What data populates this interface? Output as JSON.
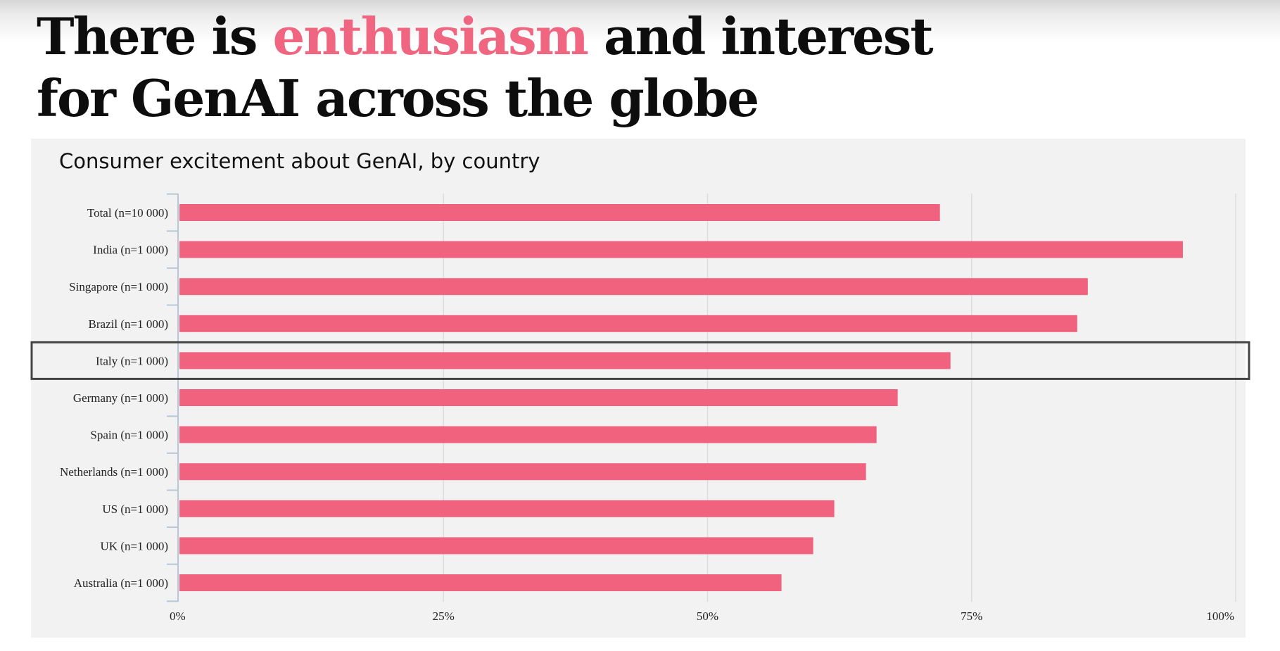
{
  "headline": {
    "part1": "There is ",
    "highlight": "enthusiasm",
    "part2": " and interest",
    "line2": "for GenAI across the globe"
  },
  "colors": {
    "accent": "#f0657f",
    "bar": "#f0627d",
    "panel": "#f2f2f2",
    "highlight_box": "#444444"
  },
  "chart_data": {
    "type": "bar",
    "orientation": "horizontal",
    "title": "Consumer excitement about GenAI, by country",
    "categories": [
      "Total (n=10 000)",
      "India (n=1 000)",
      "Singapore (n=1 000)",
      "Brazil (n=1 000)",
      "Italy (n=1 000)",
      "Germany (n=1 000)",
      "Spain (n=1 000)",
      "Netherlands (n=1 000)",
      "US (n=1 000)",
      "UK (n=1 000)",
      "Australia (n=1 000)"
    ],
    "values": [
      72,
      95,
      86,
      85,
      73,
      68,
      66,
      65,
      62,
      60,
      57
    ],
    "xlim": [
      0,
      100
    ],
    "xticks": [
      0,
      25,
      50,
      75,
      100
    ],
    "xtick_labels": [
      "0%",
      "25%",
      "50%",
      "75%",
      "100%"
    ],
    "highlighted_category": "Italy (n=1 000)",
    "grid": true,
    "legend": "none"
  }
}
